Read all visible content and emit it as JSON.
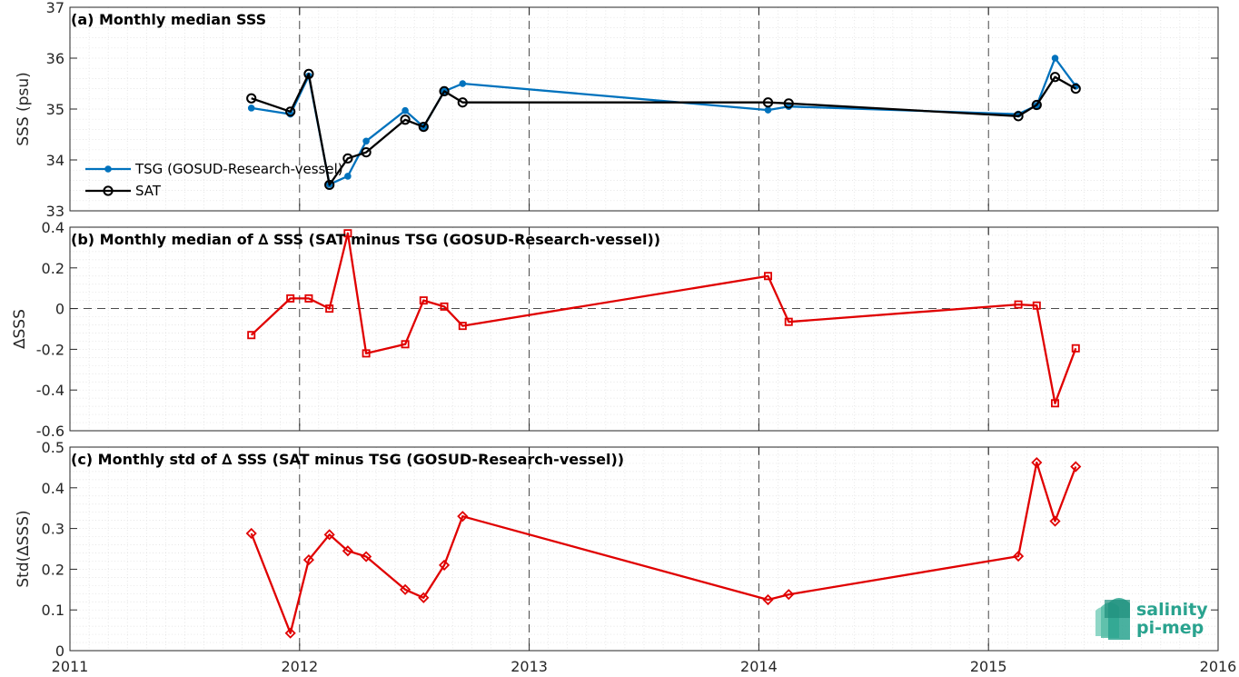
{
  "colors": {
    "tsg": "#0072bd",
    "sat": "#000000",
    "delta": "#e00000",
    "grid": "#bfbfbf",
    "axis": "#262626",
    "logo_teal": "#2aa38f"
  },
  "logo": {
    "line1": "salinity",
    "line2": "pi-mep",
    "icon": "salinity-wave-logo"
  },
  "chart_data": [
    {
      "type": "line",
      "title": "(a) Monthly median SSS",
      "xlabel": "",
      "ylabel": "SSS (psu)",
      "xlim": [
        2011,
        2016
      ],
      "ylim": [
        33,
        37
      ],
      "xticks": [
        2011,
        2012,
        2013,
        2014,
        2015,
        2016
      ],
      "yticks": [
        33,
        34,
        35,
        36,
        37
      ],
      "grid": true,
      "legend": "lower-left",
      "series": [
        {
          "name": "TSG (GOSUD-Research-vessel)",
          "key": "tsg",
          "marker": "dot",
          "x": [
            2011.79,
            2011.96,
            2012.04,
            2012.13,
            2012.21,
            2012.29,
            2012.46,
            2012.54,
            2012.63,
            2012.71,
            2014.04,
            2014.13,
            2015.13,
            2015.21,
            2015.29,
            2015.38
          ],
          "y": [
            35.02,
            34.9,
            35.65,
            33.52,
            33.68,
            34.37,
            34.97,
            34.65,
            35.35,
            35.5,
            34.98,
            35.05,
            34.9,
            35.07,
            36.0,
            35.45
          ]
        },
        {
          "name": "SAT",
          "key": "sat",
          "marker": "circle",
          "x": [
            2011.79,
            2011.96,
            2012.04,
            2012.13,
            2012.21,
            2012.29,
            2012.46,
            2012.54,
            2012.63,
            2012.71,
            2014.04,
            2014.13,
            2015.13,
            2015.21,
            2015.29,
            2015.38
          ],
          "y": [
            35.21,
            34.95,
            35.69,
            33.51,
            34.03,
            34.15,
            34.79,
            34.65,
            35.35,
            35.13,
            35.13,
            35.11,
            34.86,
            35.08,
            35.63,
            35.4
          ]
        }
      ]
    },
    {
      "type": "line",
      "title": "(b) Monthly median of ∆ SSS (SAT minus TSG (GOSUD-Research-vessel))",
      "xlabel": "",
      "ylabel": "∆SSS",
      "xlim": [
        2011,
        2016
      ],
      "ylim": [
        -0.6,
        0.4
      ],
      "xticks": [
        2011,
        2012,
        2013,
        2014,
        2015,
        2016
      ],
      "yticks": [
        -0.6,
        -0.4,
        -0.2,
        0,
        0.2,
        0.4
      ],
      "ytick_labels": [
        "-0.6",
        "-0.4",
        "-0.2",
        "0",
        "0.2",
        "0.4"
      ],
      "grid": true,
      "zero_line": true,
      "series": [
        {
          "key": "delta",
          "marker": "square",
          "x": [
            2011.79,
            2011.96,
            2012.04,
            2012.13,
            2012.21,
            2012.29,
            2012.46,
            2012.54,
            2012.63,
            2012.71,
            2014.04,
            2014.13,
            2015.13,
            2015.21,
            2015.29,
            2015.38
          ],
          "y": [
            -0.13,
            0.05,
            0.05,
            0.0,
            0.37,
            -0.22,
            -0.175,
            0.04,
            0.01,
            -0.085,
            0.16,
            -0.065,
            0.02,
            0.015,
            -0.465,
            -0.195
          ]
        }
      ]
    },
    {
      "type": "line",
      "title": "(c) Monthly std of ∆ SSS (SAT minus TSG (GOSUD-Research-vessel))",
      "xlabel": "",
      "ylabel": "Std(∆SSS)",
      "xlim": [
        2011,
        2016
      ],
      "ylim": [
        0,
        0.5
      ],
      "xticks": [
        2011,
        2012,
        2013,
        2014,
        2015,
        2016
      ],
      "yticks": [
        0,
        0.1,
        0.2,
        0.3,
        0.4,
        0.5
      ],
      "ytick_labels": [
        "0",
        "0.1",
        "0.2",
        "0.3",
        "0.4",
        "0.5"
      ],
      "grid": true,
      "series": [
        {
          "key": "delta",
          "marker": "diamond",
          "x": [
            2011.79,
            2011.96,
            2012.04,
            2012.13,
            2012.21,
            2012.29,
            2012.46,
            2012.54,
            2012.63,
            2012.71,
            2014.04,
            2014.13,
            2015.13,
            2015.21,
            2015.29,
            2015.38
          ],
          "y": [
            0.288,
            0.043,
            0.223,
            0.285,
            0.245,
            0.231,
            0.15,
            0.13,
            0.21,
            0.33,
            0.125,
            0.138,
            0.232,
            0.462,
            0.318,
            0.452
          ]
        }
      ]
    }
  ]
}
